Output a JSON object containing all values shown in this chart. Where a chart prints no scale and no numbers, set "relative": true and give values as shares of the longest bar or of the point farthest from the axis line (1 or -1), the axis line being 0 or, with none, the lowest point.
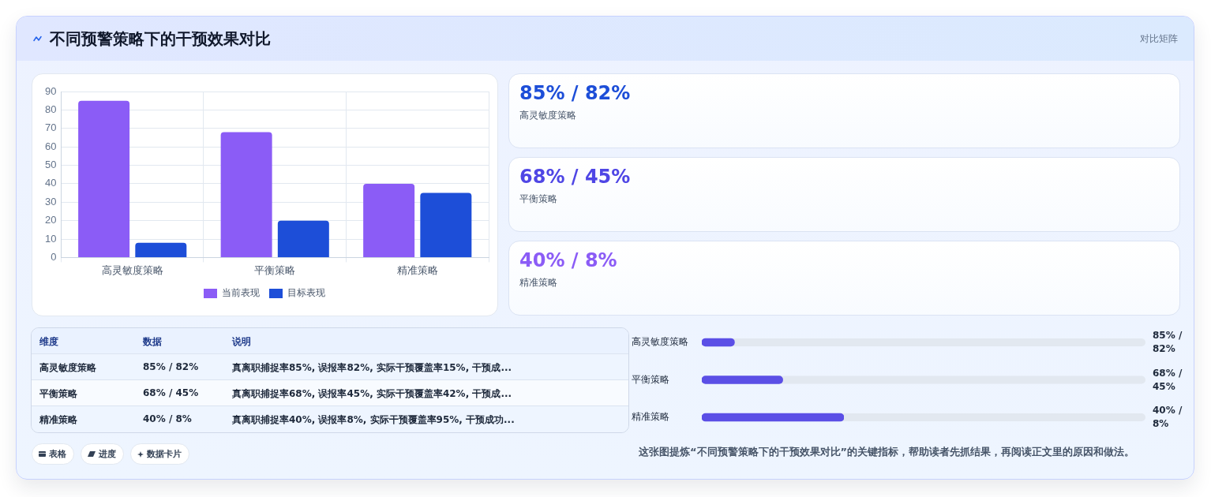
{
  "chart_data": [
    {
      "type": "other",
      "title": "不同预警策略下的干预效果对比",
      "subtitle": "对比矩阵"
    },
    {
      "type": "bar",
      "categories": [
        "高灵敏度策略",
        "平衡策略",
        "精准策略"
      ],
      "series": [
        {
          "name": "当前表现",
          "color": "#8b5cf6",
          "values": [
            85,
            68,
            40
          ]
        },
        {
          "name": "目标表现",
          "color": "#1d4ed8",
          "values": [
            8,
            20,
            35
          ]
        }
      ],
      "ylim": [
        0,
        90
      ],
      "yticks": [
        0,
        10,
        20,
        30,
        40,
        50,
        60,
        70,
        80,
        90
      ],
      "grid": true,
      "legend": "bottom"
    },
    {
      "type": "other",
      "categories": [
        "高灵敏度策略",
        "平衡策略",
        "精准策略"
      ],
      "value_labels": [
        "85% / 82%",
        "68% / 45%",
        "40% / 8%"
      ]
    },
    {
      "type": "other",
      "annotations": [
        "维度",
        "数据",
        "说明",
        "高灵敏度策略",
        "85% / 82%",
        "真离职捕捉率85%, 误报率82%, 实际干预覆盖率15%, 干预成...",
        "平衡策略",
        "68% / 45%",
        "真离职捕捉率68%, 误报率45%, 实际干预覆盖率42%, 干预成...",
        "精准策略",
        "40% / 8%",
        "真离职捕捉率40%, 误报率8%, 实际干预覆盖率95%, 干预成功..."
      ]
    },
    {
      "type": "bar",
      "orientation": "horizontal",
      "relative": true,
      "categories": [
        "高灵敏度策略",
        "平衡策略",
        "精准策略"
      ],
      "values": [
        0.23,
        0.57,
        1
      ],
      "annotations": [
        "85% / 82%",
        "68% / 45%",
        "40% / 8%"
      ],
      "color": "#5b4fe6"
    },
    {
      "type": "other",
      "categories": [
        "表格",
        "进度",
        "数据卡片"
      ],
      "annotations": [
        "这张图提炼“不同预警策略下的干预效果对比”的关键指标，帮助读者先抓结果，再阅读正文里的原因和做法。"
      ]
    }
  ]
}
